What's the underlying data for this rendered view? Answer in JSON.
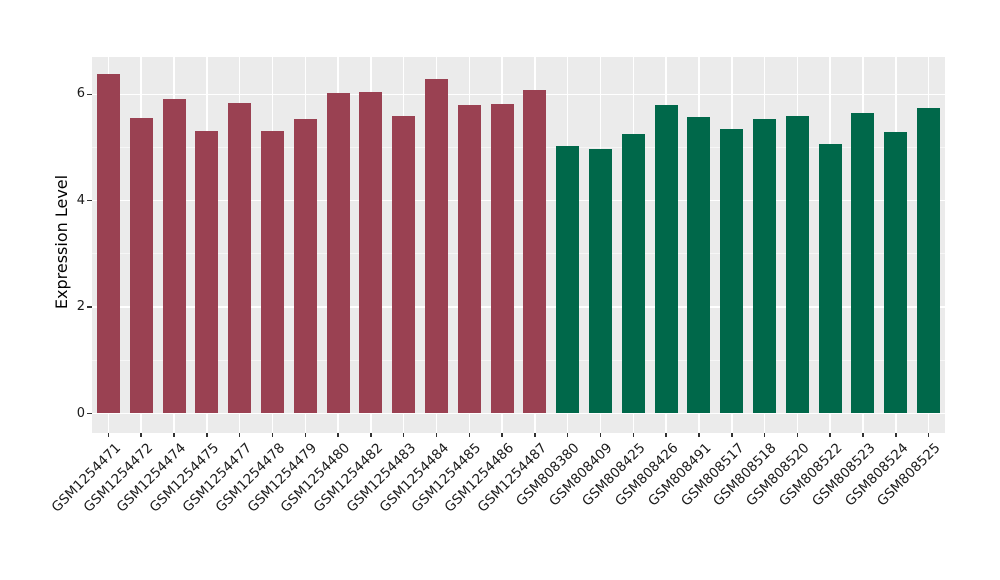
{
  "chart_data": {
    "type": "bar",
    "title": "",
    "xlabel": "",
    "ylabel": "Expression Level",
    "ylim": [
      0,
      6.7
    ],
    "yticks": [
      0,
      2,
      4,
      6
    ],
    "yminor": [
      1,
      3,
      5
    ],
    "grid": true,
    "legend": false,
    "colors": {
      "panel_background": "#EBEBEB",
      "grid_major": "#FFFFFF",
      "grid_minor": "#F7F7F7",
      "axis_text": "#1a1a1a",
      "bar_group_1": "#9A4152",
      "bar_group_2": "#00684A"
    },
    "series": [
      {
        "color": "#9A4152",
        "categories": [
          "GSM1254471",
          "GSM1254472",
          "GSM1254474",
          "GSM1254475",
          "GSM1254477",
          "GSM1254478",
          "GSM1254479",
          "GSM1254480",
          "GSM1254482",
          "GSM1254483",
          "GSM1254484",
          "GSM1254485",
          "GSM1254486",
          "GSM1254487"
        ],
        "values": [
          6.38,
          5.55,
          5.92,
          5.31,
          5.83,
          5.31,
          5.54,
          6.02,
          6.05,
          5.6,
          6.29,
          5.79,
          5.81,
          6.09
        ]
      },
      {
        "color": "#00684A",
        "categories": [
          "GSM808380",
          "GSM808409",
          "GSM808425",
          "GSM808426",
          "GSM808491",
          "GSM808517",
          "GSM808518",
          "GSM808520",
          "GSM808522",
          "GSM808523",
          "GSM808524",
          "GSM808525"
        ],
        "values": [
          5.03,
          4.97,
          5.25,
          5.8,
          5.57,
          5.34,
          5.54,
          5.59,
          5.06,
          5.65,
          5.29,
          5.74
        ]
      }
    ]
  }
}
